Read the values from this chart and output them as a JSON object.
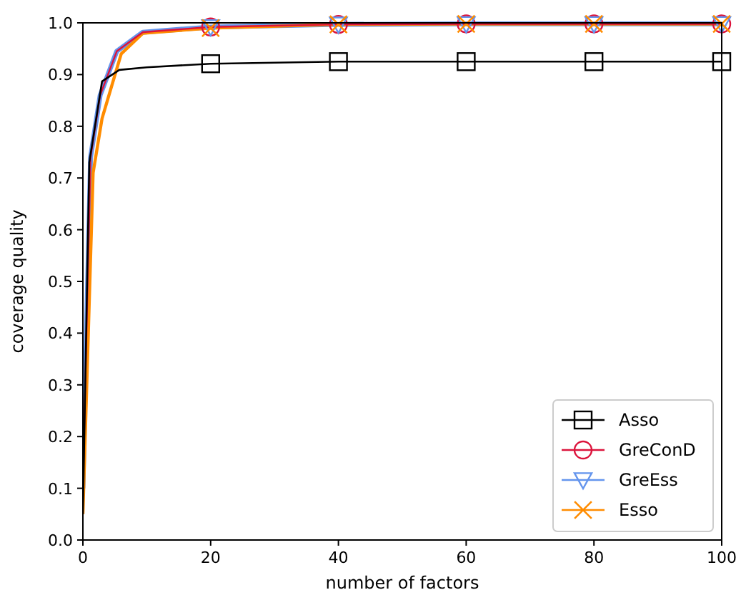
{
  "chart_data": {
    "type": "line",
    "xlabel": "number of factors",
    "ylabel": "coverage quality",
    "xlim": [
      0,
      100
    ],
    "ylim": [
      0,
      1
    ],
    "xticks": [
      0,
      20,
      40,
      60,
      80,
      100
    ],
    "yticks": [
      {
        "value": 0,
        "label": "0.0"
      },
      0.1,
      0.2,
      0.3,
      0.4,
      0.5,
      0.6,
      0.7,
      0.8,
      0.9,
      {
        "value": 1,
        "label": "1.0"
      }
    ],
    "grid": false,
    "legend": "bottom right",
    "series": [
      {
        "name": "Asso",
        "color": "#000000",
        "marker": "square",
        "x": [
          0,
          1,
          3,
          5.7,
          10,
          20,
          40,
          60,
          80,
          100
        ],
        "values": [
          0.05,
          0.73,
          0.887,
          0.909,
          0.914,
          0.921,
          0.925,
          0.925,
          0.925,
          0.925
        ]
      },
      {
        "name": "GreConD",
        "color": "#dc143c",
        "marker": "circle",
        "x": [
          0,
          1.2,
          2.7,
          5.3,
          9.4,
          20,
          40,
          60,
          80,
          100
        ],
        "values": [
          0.1,
          0.74,
          0.86,
          0.945,
          0.982,
          0.992,
          0.997,
          0.998,
          0.998,
          0.998
        ]
      },
      {
        "name": "GreEss",
        "color": "#6495ed",
        "marker": "triangle",
        "x": [
          0,
          1.2,
          2.7,
          5.3,
          9.4,
          20,
          40,
          60,
          80,
          100
        ],
        "values": [
          0.1,
          0.74,
          0.86,
          0.945,
          0.982,
          0.992,
          0.997,
          0.998,
          0.998,
          0.998
        ]
      },
      {
        "name": "Esso",
        "color": "#ff8c00",
        "marker": "cross",
        "x": [
          0,
          1.6,
          3,
          6,
          9.4,
          20,
          40,
          60,
          80,
          100
        ],
        "values": [
          0.05,
          0.71,
          0.815,
          0.94,
          0.98,
          0.99,
          0.997,
          0.998,
          0.998,
          0.998
        ]
      }
    ]
  }
}
